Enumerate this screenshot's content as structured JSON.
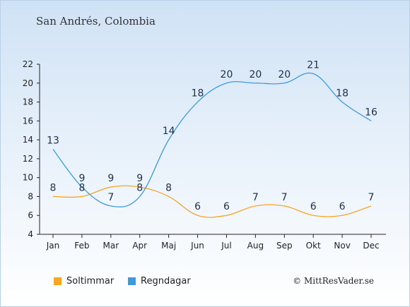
{
  "header": {
    "location": "San Andrés, Colombia"
  },
  "chart_data": {
    "type": "line",
    "categories": [
      "Jan",
      "Feb",
      "Mar",
      "Apr",
      "Maj",
      "Jun",
      "Jul",
      "Aug",
      "Sep",
      "Okt",
      "Nov",
      "Dec"
    ],
    "series": [
      {
        "name": "Soltimmar",
        "values": [
          8,
          8,
          9,
          9,
          8,
          6,
          6,
          7,
          7,
          6,
          6,
          7
        ],
        "color": "#f5a623"
      },
      {
        "name": "Regndagar",
        "values": [
          13,
          9,
          7,
          8,
          14,
          18,
          20,
          20,
          20,
          21,
          18,
          16
        ],
        "color": "#3b9be0"
      }
    ],
    "yticks": [
      4,
      6,
      8,
      10,
      12,
      14,
      16,
      18,
      20,
      22
    ],
    "ylim": [
      4,
      22
    ],
    "grid": false,
    "legend": "bottom-left"
  },
  "footer": {
    "copyright": "© MittResVader.se"
  }
}
